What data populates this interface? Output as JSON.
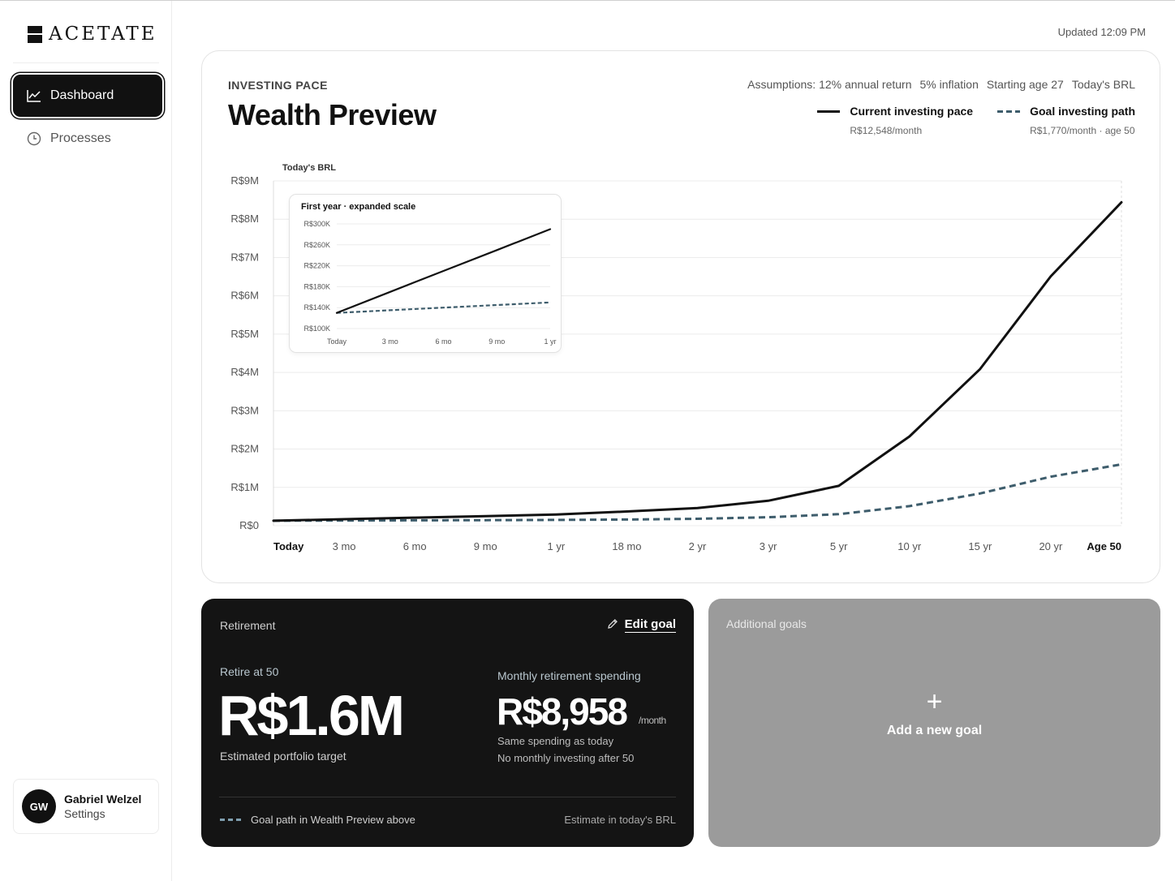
{
  "app": {
    "logo_text": "ACETATE",
    "updated": "Updated 12:09 PM"
  },
  "sidebar": {
    "items": [
      {
        "label": "Dashboard",
        "icon": "chart-line-icon",
        "active": true
      },
      {
        "label": "Processes",
        "icon": "clock-icon",
        "active": false
      }
    ],
    "user": {
      "initials": "GW",
      "name": "Gabriel Welzel",
      "sub": "Settings"
    }
  },
  "chart_card": {
    "eyebrow": "INVESTING PACE",
    "title": "Wealth Preview",
    "assumptions": [
      "Assumptions: 12% annual return",
      "5% inflation",
      "Starting age 27",
      "Today's BRL"
    ],
    "legend": [
      {
        "label": "Current investing pace",
        "sub": "R$12,548/month"
      },
      {
        "label": "Goal investing path",
        "sub": "R$1,770/month · age 50"
      }
    ]
  },
  "chart_data": [
    {
      "type": "line",
      "ylabel": "Today's BRL",
      "ylim": [
        0,
        9000000
      ],
      "y_ticks": [
        0,
        1000000,
        2000000,
        3000000,
        4000000,
        5000000,
        6000000,
        7000000,
        8000000,
        9000000
      ],
      "y_tick_labels": [
        "R$0",
        "R$1M",
        "R$2M",
        "R$3M",
        "R$4M",
        "R$5M",
        "R$6M",
        "R$7M",
        "R$8M",
        "R$9M"
      ],
      "categories": [
        "Today",
        "3 mo",
        "6 mo",
        "9 mo",
        "1 yr",
        "18 mo",
        "2 yr",
        "3 yr",
        "5 yr",
        "10 yr",
        "15 yr",
        "20 yr",
        "Age 50"
      ],
      "bold_categories": [
        "Today",
        "Age 50"
      ],
      "grid": true,
      "series": [
        {
          "name": "Current investing pace",
          "style": "solid",
          "color": "#111111",
          "values": [
            130000,
            170000,
            210000,
            250000,
            290000,
            370000,
            460000,
            650000,
            1040000,
            2330000,
            4090000,
            6510000,
            8440000
          ]
        },
        {
          "name": "Goal investing path",
          "style": "dashed",
          "color": "#3e5d6c",
          "values": [
            130000,
            135000,
            140000,
            145000,
            150000,
            160000,
            180000,
            220000,
            300000,
            510000,
            840000,
            1280000,
            1600000
          ]
        }
      ]
    },
    {
      "type": "line",
      "title": "First year · expanded scale",
      "ylim": [
        100000,
        300000
      ],
      "y_ticks": [
        100000,
        140000,
        180000,
        220000,
        260000,
        300000
      ],
      "y_tick_labels": [
        "R$100K",
        "R$140K",
        "R$180K",
        "R$220K",
        "R$260K",
        "R$300K"
      ],
      "categories": [
        "Today",
        "3 mo",
        "6 mo",
        "9 mo",
        "1 yr"
      ],
      "grid": true,
      "series": [
        {
          "name": "Current investing pace",
          "style": "solid",
          "color": "#111111",
          "values": [
            130000,
            170000,
            210000,
            250000,
            290000
          ]
        },
        {
          "name": "Goal investing path",
          "style": "dashed",
          "color": "#3e5d6c",
          "values": [
            130000,
            135000,
            140000,
            145000,
            150000
          ]
        }
      ]
    }
  ],
  "retirement": {
    "label": "Retirement",
    "edit_label": "Edit goal",
    "retire_at": "Retire at 50",
    "amount": "R$1.6M",
    "amount_sub": "Estimated portfolio target",
    "monthly_label": "Monthly retirement spending",
    "monthly_amount": "R$8,958",
    "per_month": "/month",
    "same_spending": "Same spending as today",
    "no_investing": "No monthly investing after 50",
    "goal_note": "Goal path in Wealth Preview above",
    "estimate_note": "Estimate in today's BRL"
  },
  "additional_goals": {
    "label": "Additional goals",
    "plus": "+",
    "add_label": "Add a new goal"
  }
}
